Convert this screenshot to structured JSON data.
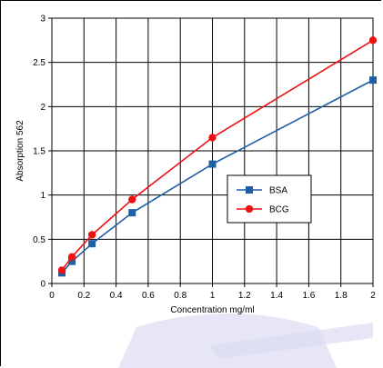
{
  "chart_data": {
    "type": "line",
    "title": "",
    "xlabel": "Concentration mg/ml",
    "ylabel": "Absorption 562",
    "xlim": [
      0,
      2
    ],
    "ylim": [
      0,
      3
    ],
    "xticks": [
      "0",
      "0.2",
      "0.4",
      "0.6",
      "0.8",
      "1",
      "1.2",
      "1.4",
      "1.6",
      "1.8",
      "2"
    ],
    "yticks": [
      "0",
      "0.5",
      "1",
      "1.5",
      "2",
      "2.5",
      "3"
    ],
    "xtick_values": [
      0,
      0.2,
      0.4,
      0.6,
      0.8,
      1,
      1.2,
      1.4,
      1.6,
      1.8,
      2
    ],
    "ytick_values": [
      0,
      0.5,
      1,
      1.5,
      2,
      2.5,
      3
    ],
    "grid": true,
    "legend_position": "center-right",
    "series": [
      {
        "name": "BSA",
        "color": "#1f5fa6",
        "marker": "square",
        "x": [
          0.0625,
          0.125,
          0.25,
          0.5,
          1,
          2
        ],
        "y": [
          0.12,
          0.25,
          0.45,
          0.8,
          1.35,
          2.3
        ]
      },
      {
        "name": "BCG",
        "color": "#ee1111",
        "marker": "circle",
        "x": [
          0.0625,
          0.125,
          0.25,
          0.5,
          1,
          2
        ],
        "y": [
          0.15,
          0.3,
          0.55,
          0.95,
          1.65,
          2.75
        ]
      }
    ]
  },
  "watermark_color": "#dcdcf2"
}
